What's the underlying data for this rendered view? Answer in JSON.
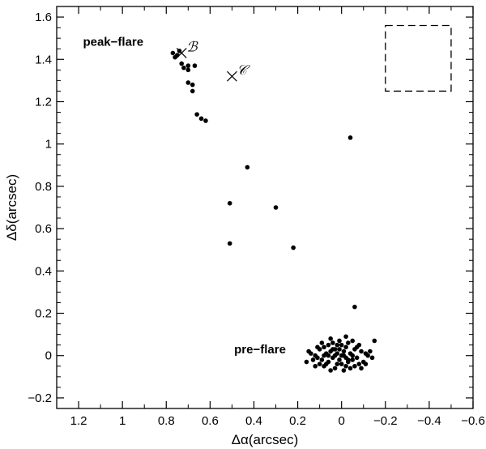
{
  "chart_data": {
    "type": "scatter",
    "title": "",
    "xlabel": "Δα(arcsec)",
    "ylabel": "Δδ(arcsec)",
    "xlim": [
      1.3,
      -0.6
    ],
    "ylim": [
      -0.25,
      1.65
    ],
    "x_reversed": true,
    "x_ticks": [
      1.2,
      1,
      0.8,
      0.6,
      0.4,
      0.2,
      0,
      -0.2,
      -0.4,
      -0.6
    ],
    "x_tick_labels": [
      "1.2",
      "1",
      "0.8",
      "0.6",
      "0.4",
      "0.2",
      "0",
      "−0.2",
      "−0.4",
      "−0.6"
    ],
    "y_ticks": [
      -0.2,
      0,
      0.2,
      0.4,
      0.6,
      0.8,
      1,
      1.2,
      1.4,
      1.6
    ],
    "y_tick_labels": [
      "−0.2",
      "0",
      "0.2",
      "0.4",
      "0.6",
      "0.8",
      "1",
      "1.2",
      "1.4",
      "1.6"
    ],
    "grid": false,
    "series": [
      {
        "points": [
          [
            0.77,
            1.43
          ],
          [
            0.76,
            1.41
          ],
          [
            0.74,
            1.44
          ],
          [
            0.75,
            1.42
          ],
          [
            0.73,
            1.38
          ],
          [
            0.72,
            1.36
          ],
          [
            0.7,
            1.37
          ],
          [
            0.7,
            1.35
          ],
          [
            0.67,
            1.37
          ],
          [
            0.7,
            1.29
          ],
          [
            0.68,
            1.28
          ],
          [
            0.68,
            1.25
          ],
          [
            0.66,
            1.14
          ],
          [
            0.64,
            1.12
          ],
          [
            0.62,
            1.11
          ],
          [
            -0.04,
            1.03
          ],
          [
            0.43,
            0.89
          ],
          [
            0.51,
            0.72
          ],
          [
            0.3,
            0.7
          ],
          [
            0.51,
            0.53
          ],
          [
            0.22,
            0.51
          ],
          [
            -0.06,
            0.23
          ],
          [
            0.0,
            0.0
          ],
          [
            0.02,
            0.01
          ],
          [
            -0.02,
            -0.01
          ],
          [
            0.01,
            -0.02
          ],
          [
            -0.01,
            0.02
          ],
          [
            0.03,
            0.03
          ],
          [
            -0.03,
            -0.03
          ],
          [
            0.04,
            -0.01
          ],
          [
            -0.04,
            0.01
          ],
          [
            0.05,
            0.02
          ],
          [
            -0.05,
            -0.02
          ],
          [
            0.06,
            -0.03
          ],
          [
            -0.06,
            0.03
          ],
          [
            0.07,
            0.01
          ],
          [
            -0.07,
            -0.01
          ],
          [
            0.08,
            0.04
          ],
          [
            -0.08,
            -0.04
          ],
          [
            0.09,
            -0.02
          ],
          [
            -0.09,
            0.02
          ],
          [
            0.1,
            0.03
          ],
          [
            -0.1,
            -0.03
          ],
          [
            0.11,
            -0.01
          ],
          [
            -0.11,
            0.01
          ],
          [
            0.12,
            0.0
          ],
          [
            -0.12,
            0.0
          ],
          [
            0.02,
            0.05
          ],
          [
            -0.02,
            -0.05
          ],
          [
            0.04,
            0.06
          ],
          [
            -0.04,
            -0.06
          ],
          [
            0.01,
            0.07
          ],
          [
            -0.01,
            -0.07
          ],
          [
            0.03,
            -0.06
          ],
          [
            -0.03,
            0.06
          ],
          [
            0.06,
            0.05
          ],
          [
            -0.06,
            -0.05
          ],
          [
            0.08,
            -0.05
          ],
          [
            -0.08,
            0.05
          ],
          [
            0.13,
            -0.02
          ],
          [
            -0.13,
            0.02
          ],
          [
            0.14,
            0.01
          ],
          [
            -0.14,
            -0.01
          ],
          [
            0.15,
            0.02
          ],
          [
            0.05,
            0.08
          ],
          [
            -0.02,
            0.09
          ],
          [
            -0.05,
            0.07
          ],
          [
            0.0,
            -0.04
          ],
          [
            0.02,
            -0.04
          ],
          [
            -0.02,
            0.04
          ],
          [
            0.07,
            -0.04
          ],
          [
            -0.07,
            0.04
          ],
          [
            0.09,
            0.06
          ],
          [
            -0.09,
            -0.06
          ],
          [
            0.11,
            0.04
          ],
          [
            -0.11,
            -0.04
          ],
          [
            0.12,
            -0.05
          ],
          [
            0.16,
            -0.03
          ],
          [
            0.05,
            -0.07
          ],
          [
            -0.03,
            -0.02
          ],
          [
            0.01,
            0.03
          ],
          [
            -0.15,
            0.07
          ],
          [
            0.0,
            0.05
          ],
          [
            0.03,
            0.0
          ],
          [
            -0.05,
            0.0
          ],
          [
            0.06,
            0.0
          ],
          [
            0.1,
            -0.04
          ],
          [
            0.08,
            0.0
          ],
          [
            0.04,
            0.03
          ],
          [
            -0.01,
            0.0
          ]
        ]
      }
    ],
    "markers": [
      {
        "symbol": "×",
        "label": "ℬ",
        "x": 0.73,
        "y": 1.43
      },
      {
        "symbol": "×",
        "label": "𝒞",
        "x": 0.5,
        "y": 1.32
      }
    ],
    "annotations": [
      {
        "text": "peak−flare",
        "x": 1.18,
        "y": 1.465
      },
      {
        "text": "pre−flare",
        "x": 0.49,
        "y": 0.01
      }
    ],
    "inset_box": {
      "x_range": [
        -0.2,
        -0.5
      ],
      "y_range": [
        1.25,
        1.56
      ],
      "style": "dashed"
    }
  }
}
